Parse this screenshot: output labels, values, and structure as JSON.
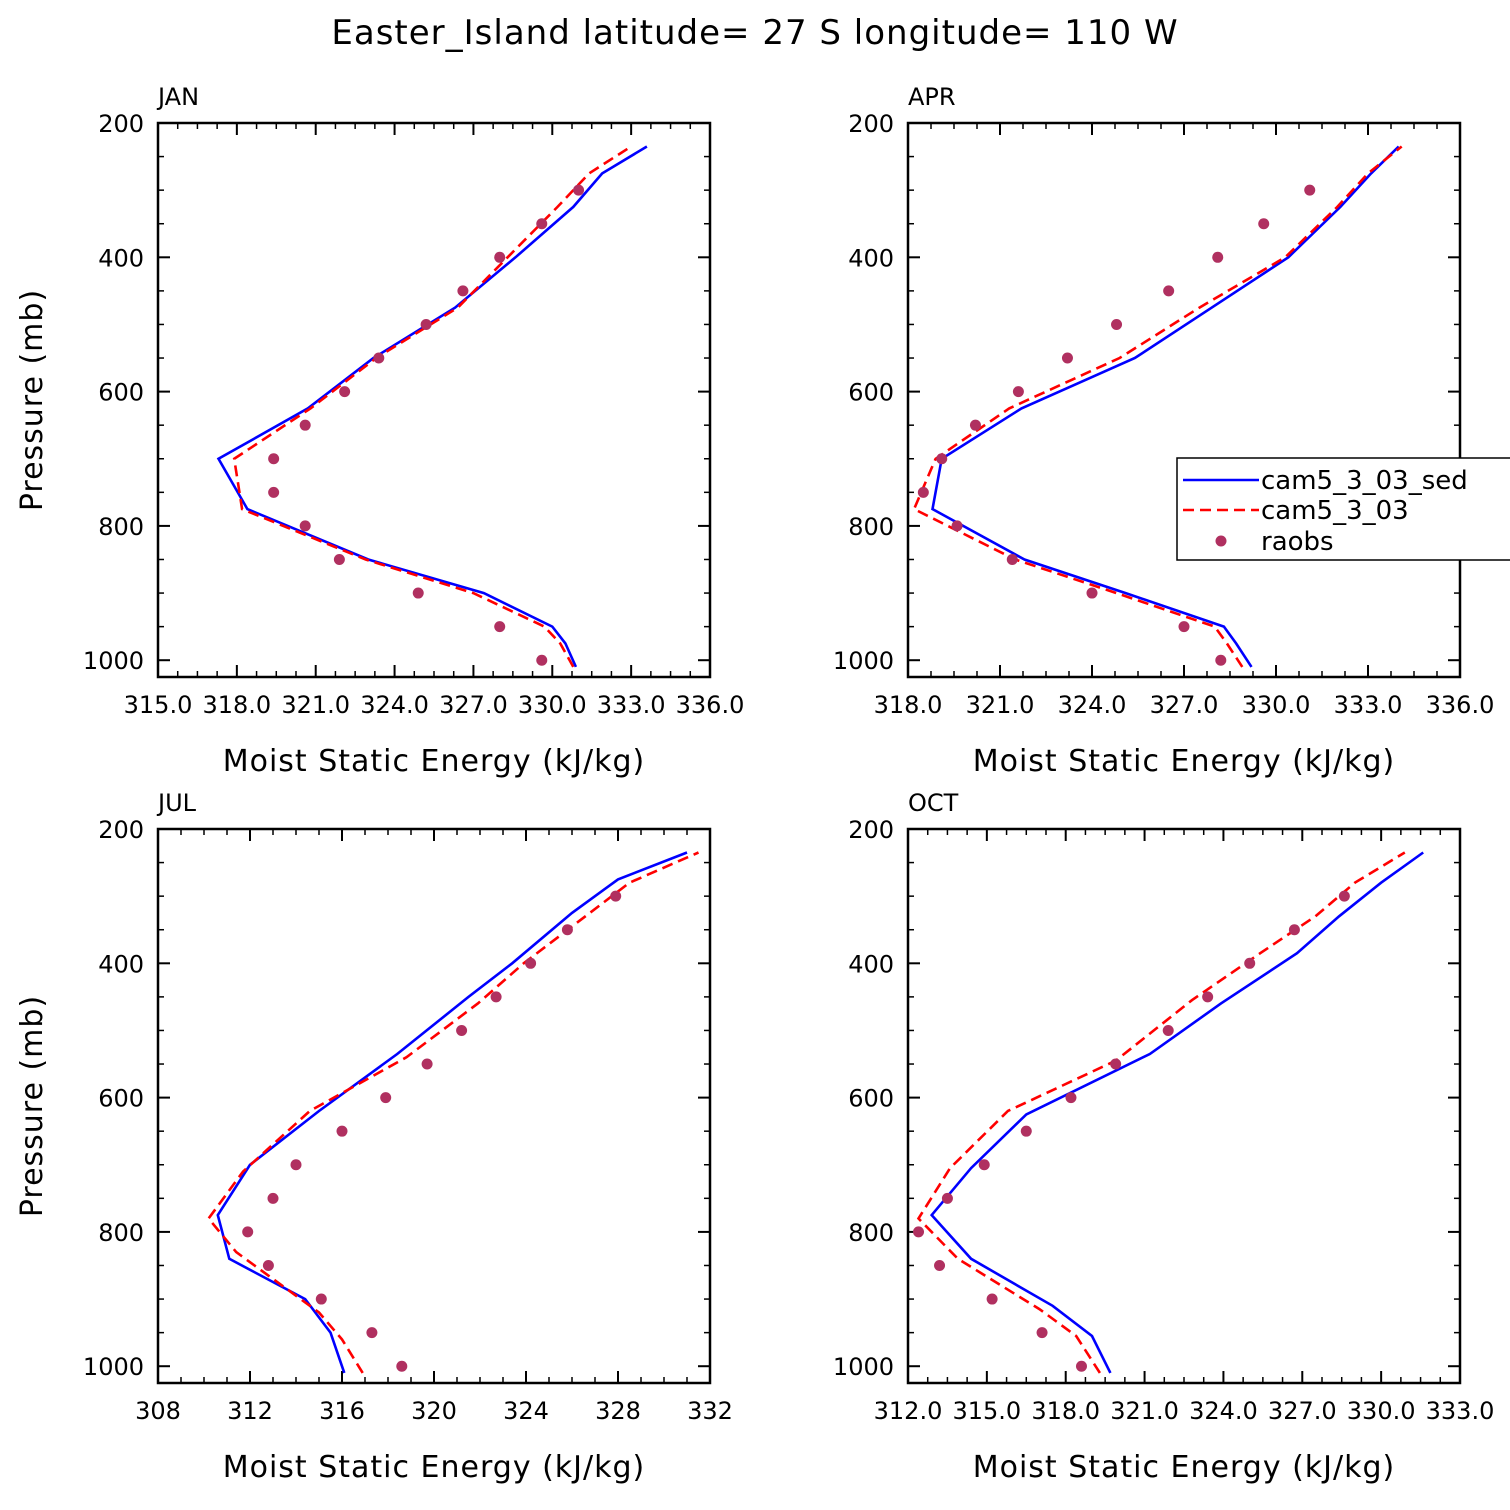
{
  "title": "Easter_Island  latitude= 27 S longitude= 110 W",
  "legend": {
    "entries": [
      {
        "label": "cam5_3_03_sed",
        "style": "solid",
        "color": "#0000ff"
      },
      {
        "label": "cam5_3_03",
        "style": "dashed",
        "color": "#ff0000"
      },
      {
        "label": "raobs",
        "style": "marker",
        "color": "#b03060"
      }
    ]
  },
  "colors": {
    "model_solid": "#0000ff",
    "model_dashed": "#ff0000",
    "obs": "#b03060"
  },
  "chart_data": [
    {
      "type": "line",
      "panel": "JAN",
      "xlabel": "Moist Static Energy (kJ/kg)",
      "ylabel": "Pressure (mb)",
      "xlim": [
        315.0,
        336.0
      ],
      "ylim": [
        1025,
        200
      ],
      "xticks": [
        315.0,
        318.0,
        321.0,
        324.0,
        327.0,
        330.0,
        333.0,
        336.0
      ],
      "xtick_labels": [
        "315.0",
        "318.0",
        "321.0",
        "324.0",
        "327.0",
        "330.0",
        "333.0",
        "336.0"
      ],
      "yticks": [
        200,
        400,
        600,
        800,
        1000
      ],
      "ytick_labels": [
        "200",
        "400",
        "600",
        "800",
        "1000"
      ],
      "series": [
        {
          "name": "cam5_3_03_sed",
          "style": "solid",
          "pressure": [
            1010,
            975,
            950,
            900,
            850,
            775,
            700,
            625,
            550,
            475,
            400,
            325,
            275,
            235
          ],
          "values": [
            330.9,
            330.5,
            330.0,
            327.4,
            323.0,
            318.4,
            317.3,
            320.7,
            323.2,
            326.3,
            328.6,
            330.8,
            331.9,
            333.6
          ]
        },
        {
          "name": "cam5_3_03",
          "style": "dashed",
          "pressure": [
            1010,
            975,
            950,
            900,
            850,
            775,
            700,
            625,
            550,
            475,
            400,
            325,
            275,
            235
          ],
          "values": [
            330.8,
            330.3,
            329.7,
            327.0,
            322.9,
            318.2,
            317.9,
            320.8,
            323.3,
            326.4,
            328.3,
            330.2,
            331.4,
            333.0
          ]
        },
        {
          "name": "raobs",
          "style": "marker",
          "pressure": [
            1000,
            950,
            900,
            850,
            800,
            750,
            700,
            650,
            600,
            550,
            500,
            450,
            400,
            350,
            300
          ],
          "values": [
            329.6,
            328.0,
            324.9,
            321.9,
            320.6,
            319.4,
            319.4,
            320.6,
            322.1,
            323.4,
            325.2,
            326.6,
            328.0,
            329.6,
            331.0
          ]
        }
      ]
    },
    {
      "type": "line",
      "panel": "APR",
      "xlabel": "Moist Static Energy (kJ/kg)",
      "ylabel": "",
      "xlim": [
        318.0,
        336.0
      ],
      "ylim": [
        1025,
        200
      ],
      "xticks": [
        318,
        321,
        324,
        327,
        330,
        333,
        336
      ],
      "xtick_labels": [
        "318.0",
        "321.0",
        "324.0",
        "327.0",
        "330.0",
        "333.0",
        "336.0"
      ],
      "yticks": [
        200,
        400,
        600,
        800,
        1000
      ],
      "ytick_labels": [
        "200",
        "400",
        "600",
        "800",
        "1000"
      ],
      "series": [
        {
          "name": "cam5_3_03_sed",
          "style": "solid",
          "pressure": [
            1010,
            975,
            950,
            900,
            850,
            775,
            700,
            625,
            550,
            475,
            400,
            325,
            275,
            235
          ],
          "values": [
            329.2,
            328.7,
            328.3,
            325.1,
            321.8,
            318.8,
            319.1,
            321.7,
            325.4,
            327.9,
            330.4,
            332.1,
            333.1,
            334.0
          ]
        },
        {
          "name": "cam5_3_03",
          "style": "dashed",
          "pressure": [
            1010,
            975,
            950,
            900,
            850,
            775,
            700,
            625,
            550,
            475,
            400,
            325,
            275,
            235
          ],
          "values": [
            328.9,
            328.4,
            328.0,
            324.8,
            321.5,
            318.2,
            318.9,
            321.3,
            324.9,
            327.5,
            330.3,
            332.0,
            333.0,
            334.1
          ]
        },
        {
          "name": "raobs",
          "style": "marker",
          "pressure": [
            1000,
            950,
            900,
            850,
            800,
            750,
            700,
            650,
            600,
            550,
            500,
            450,
            400,
            350,
            300
          ],
          "values": [
            328.2,
            327.0,
            324.0,
            321.4,
            319.6,
            318.5,
            319.1,
            320.2,
            321.6,
            323.2,
            324.8,
            326.5,
            328.1,
            329.6,
            331.1
          ]
        }
      ]
    },
    {
      "type": "line",
      "panel": "JUL",
      "xlabel": "Moist Static Energy (kJ/kg)",
      "ylabel": "Pressure (mb)",
      "xlim": [
        308,
        332
      ],
      "ylim": [
        1025,
        200
      ],
      "xticks": [
        308,
        312,
        316,
        320,
        324,
        328,
        332
      ],
      "xtick_labels": [
        "308",
        "312",
        "316",
        "320",
        "324",
        "328",
        "332"
      ],
      "yticks": [
        200,
        400,
        600,
        800,
        1000
      ],
      "ytick_labels": [
        "200",
        "400",
        "600",
        "800",
        "1000"
      ],
      "series": [
        {
          "name": "cam5_3_03_sed",
          "style": "solid",
          "pressure": [
            1010,
            950,
            900,
            840,
            775,
            700,
            620,
            535,
            450,
            400,
            325,
            275,
            235
          ],
          "values": [
            316.1,
            315.5,
            314.4,
            311.1,
            310.6,
            312.0,
            315.0,
            318.4,
            321.5,
            323.4,
            326.0,
            328.0,
            331.0
          ]
        },
        {
          "name": "cam5_3_03",
          "style": "dashed",
          "pressure": [
            1010,
            960,
            920,
            830,
            780,
            710,
            620,
            540,
            460,
            400,
            340,
            280,
            235
          ],
          "values": [
            316.9,
            316.0,
            315.0,
            311.4,
            310.2,
            311.7,
            314.6,
            318.8,
            321.9,
            323.9,
            326.2,
            328.5,
            331.5
          ]
        },
        {
          "name": "raobs",
          "style": "marker",
          "pressure": [
            1000,
            950,
            900,
            850,
            800,
            750,
            700,
            650,
            600,
            550,
            500,
            450,
            400,
            350,
            300
          ],
          "values": [
            318.6,
            317.3,
            315.1,
            312.8,
            311.9,
            313.0,
            314.0,
            316.0,
            317.9,
            319.7,
            321.2,
            322.7,
            324.2,
            325.8,
            327.9
          ]
        }
      ]
    },
    {
      "type": "line",
      "panel": "OCT",
      "xlabel": "Moist Static Energy (kJ/kg)",
      "ylabel": "",
      "xlim": [
        312.0,
        333.0
      ],
      "ylim": [
        1025,
        200
      ],
      "xticks": [
        312,
        315,
        318,
        321,
        324,
        327,
        330,
        333
      ],
      "xtick_labels": [
        "312.0",
        "315.0",
        "318.0",
        "321.0",
        "324.0",
        "327.0",
        "330.0",
        "333.0"
      ],
      "yticks": [
        200,
        400,
        600,
        800,
        1000
      ],
      "ytick_labels": [
        "200",
        "400",
        "600",
        "800",
        "1000"
      ],
      "series": [
        {
          "name": "cam5_3_03_sed",
          "style": "solid",
          "pressure": [
            1010,
            955,
            910,
            840,
            775,
            705,
            625,
            535,
            460,
            385,
            330,
            280,
            235
          ],
          "values": [
            319.7,
            319.0,
            317.5,
            314.4,
            312.9,
            314.4,
            316.5,
            321.2,
            323.9,
            326.8,
            328.4,
            330.0,
            331.6
          ]
        },
        {
          "name": "cam5_3_03",
          "style": "dashed",
          "pressure": [
            1010,
            955,
            915,
            840,
            780,
            705,
            620,
            545,
            455,
            385,
            330,
            280,
            235
          ],
          "values": [
            319.3,
            318.4,
            317.0,
            313.9,
            312.4,
            313.6,
            315.8,
            319.9,
            322.8,
            325.4,
            327.5,
            329.0,
            330.9
          ]
        },
        {
          "name": "raobs",
          "style": "marker",
          "pressure": [
            1000,
            950,
            900,
            850,
            800,
            750,
            700,
            650,
            600,
            550,
            500,
            450,
            400,
            350,
            300
          ],
          "values": [
            318.6,
            317.1,
            315.2,
            313.2,
            312.4,
            313.5,
            314.9,
            316.5,
            318.2,
            319.9,
            321.9,
            323.4,
            325.0,
            326.7,
            328.6
          ]
        }
      ]
    }
  ]
}
